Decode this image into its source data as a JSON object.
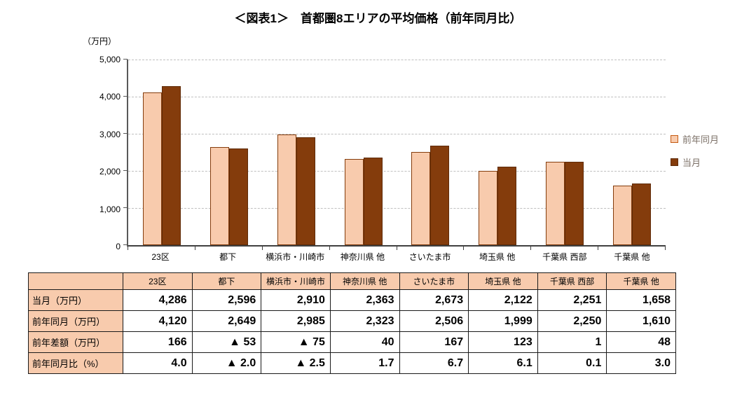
{
  "title": "＜図表1＞　首都圏8エリアの平均価格（前年同月比）",
  "colors": {
    "prev_year_fill": "#F8CBAD",
    "current_fill": "#843C0C",
    "bar_border": "#843C0C",
    "grid": "#BFBFBF",
    "axis": "#595959",
    "table_header_bg": "#F8CBAD",
    "legend_text": "#7B6F66"
  },
  "chart_data": {
    "type": "bar",
    "title": "＜図表1＞　首都圏8エリアの平均価格（前年同月比）",
    "unit_label": "（万円）",
    "categories": [
      "23区",
      "都下",
      "横浜市・川崎市",
      "神奈川県 他",
      "さいたま市",
      "埼玉県 他",
      "千葉県 西部",
      "千葉県 他"
    ],
    "series": [
      {
        "name": "前年同月",
        "color": "#F8CBAD",
        "values": [
          4120,
          2649,
          2985,
          2323,
          2506,
          1999,
          2250,
          1610
        ]
      },
      {
        "name": "当月",
        "color": "#843C0C",
        "values": [
          4286,
          2596,
          2910,
          2363,
          2673,
          2122,
          2251,
          1658
        ]
      }
    ],
    "ylim": [
      0,
      5000
    ],
    "ytick_interval": 1000,
    "ytick_labels": [
      "5,000",
      "4,000",
      "3,000",
      "2,000",
      "1,000",
      "0"
    ],
    "grid": true,
    "legend_position": "right"
  },
  "table": {
    "corner": "",
    "columns": [
      "23区",
      "都下",
      "横浜市・川崎市",
      "神奈川県 他",
      "さいたま市",
      "埼玉県 他",
      "千葉県 西部",
      "千葉県 他"
    ],
    "rows": [
      {
        "label": "当月（万円）",
        "values": [
          "4,286",
          "2,596",
          "2,910",
          "2,363",
          "2,673",
          "2,122",
          "2,251",
          "1,658"
        ]
      },
      {
        "label": "前年同月（万円）",
        "values": [
          "4,120",
          "2,649",
          "2,985",
          "2,323",
          "2,506",
          "1,999",
          "2,250",
          "1,610"
        ]
      },
      {
        "label": "前年差額（万円）",
        "values": [
          "166",
          "▲ 53",
          "▲ 75",
          "40",
          "167",
          "123",
          "1",
          "48"
        ]
      },
      {
        "label": "前年同月比（%）",
        "values": [
          "4.0",
          "▲ 2.0",
          "▲ 2.5",
          "1.7",
          "6.7",
          "6.1",
          "0.1",
          "3.0"
        ]
      }
    ]
  }
}
